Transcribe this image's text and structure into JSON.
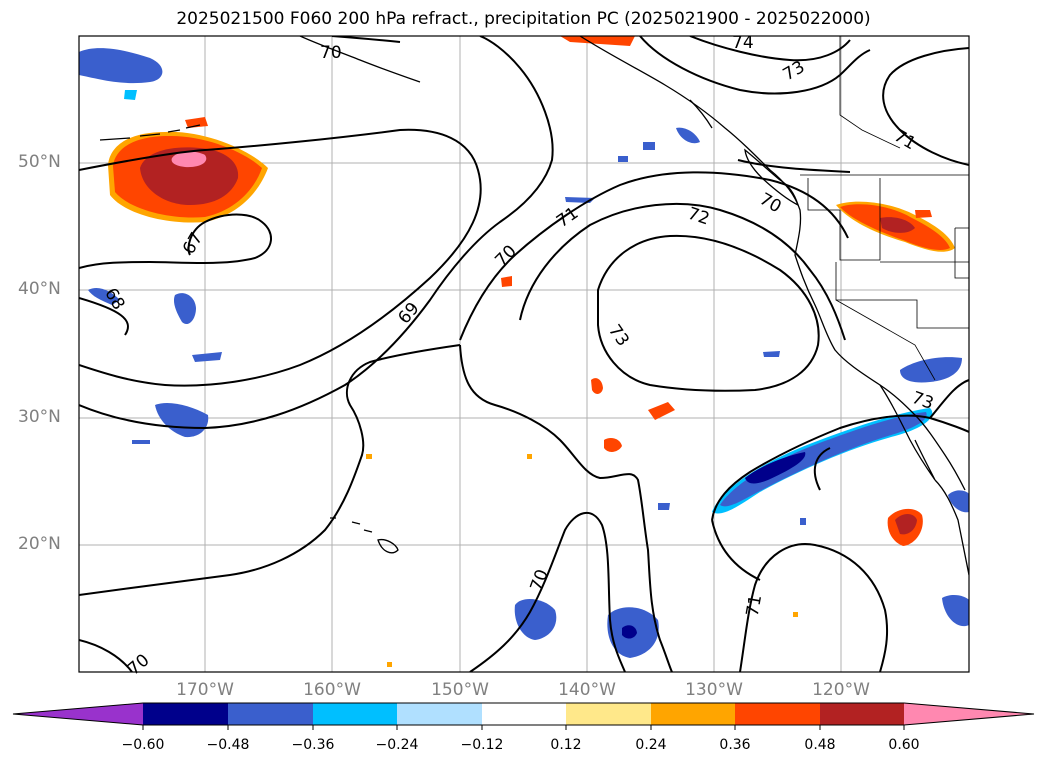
{
  "title": "2025021500 F060 200 hPa refract., precipitation PC (2025021900 - 2025022000)",
  "map": {
    "extent": {
      "lon_min": -180,
      "lon_max": -110,
      "lat_min": 10,
      "lat_max": 60
    },
    "lat_labels": [
      "50°N",
      "40°N",
      "30°N",
      "20°N"
    ],
    "lon_labels": [
      "170°W",
      "160°W",
      "150°W",
      "140°W",
      "130°W",
      "120°W"
    ],
    "gridlines": true,
    "contour_labels": [
      "70",
      "74",
      "73",
      "71",
      "67",
      "68",
      "69",
      "70",
      "71",
      "72",
      "70",
      "73",
      "73",
      "70",
      "71",
      "70"
    ]
  },
  "colorbar": {
    "tick_labels": [
      "−0.60",
      "−0.48",
      "−0.36",
      "−0.24",
      "−0.12",
      "0.12",
      "0.24",
      "0.36",
      "0.48",
      "0.60"
    ],
    "colors": [
      "#9932cc",
      "#00008b",
      "#3a5fcd",
      "#00bfff",
      "#b0e0ff",
      "#ffffff",
      "#ffe88a",
      "#ffa500",
      "#ff4500",
      "#b22222",
      "#ff88b0"
    ]
  },
  "colors": {
    "neg_strong": "#00008b",
    "neg_mid": "#3a5fcd",
    "neg_light": "#00bfff",
    "pos_light": "#ffe88a",
    "pos_mid": "#ffa500",
    "pos_strong": "#ff4500",
    "pos_dark": "#b22222",
    "pos_max": "#ff88b0"
  }
}
